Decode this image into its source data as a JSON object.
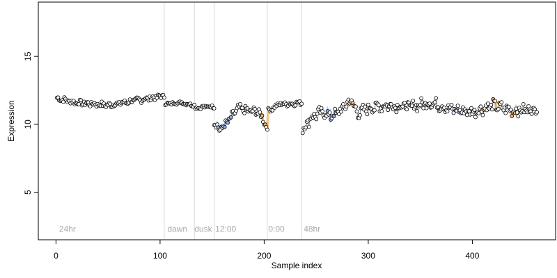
{
  "chart_data": {
    "type": "scatter",
    "xlabel": "Sample index",
    "ylabel": "Expression",
    "xlim": [
      -17,
      480
    ],
    "ylim": [
      1.5,
      19
    ],
    "x_ticks": [
      0,
      100,
      200,
      300,
      400
    ],
    "y_ticks": [
      5,
      10,
      15
    ],
    "grid": false,
    "colors": {
      "point_fill": "#ffffff",
      "point_stroke": "#000000",
      "line": "#9a9a9a",
      "blue_band": "#6f8fd8",
      "orange_band": "#e8a040",
      "vline": "#d9d9d9",
      "region_label": "#a9a9a9"
    },
    "vertical_lines": [
      104,
      133,
      152,
      203,
      236
    ],
    "region_labels": [
      {
        "text": "24hr",
        "x": 3
      },
      {
        "text": "dawn",
        "x": 107
      },
      {
        "text": "dusk",
        "x": 133
      },
      {
        "text": "12:00",
        "x": 153
      },
      {
        "text": "0:00",
        "x": 204
      },
      {
        "text": "48hr",
        "x": 238
      }
    ],
    "segments": [
      {
        "x_range": [
          1,
          104
        ],
        "anchors": [
          [
            1,
            11.9
          ],
          [
            20,
            11.6
          ],
          [
            50,
            11.4
          ],
          [
            80,
            11.8
          ],
          [
            104,
            12.1
          ]
        ],
        "amp": 0.18
      },
      {
        "x_range": [
          105,
          133
        ],
        "anchors": [
          [
            105,
            11.5
          ],
          [
            120,
            11.6
          ],
          [
            133,
            11.4
          ]
        ],
        "amp": 0.1
      },
      {
        "x_range": [
          134,
          152
        ],
        "anchors": [
          [
            134,
            11.2
          ],
          [
            145,
            11.3
          ],
          [
            152,
            11.3
          ]
        ],
        "amp": 0.1
      },
      {
        "x_range": [
          152,
          203
        ],
        "anchors": [
          [
            152,
            10.2
          ],
          [
            157,
            9.6
          ],
          [
            162,
            9.9
          ],
          [
            168,
            10.5
          ],
          [
            175,
            11.2
          ],
          [
            185,
            11.0
          ],
          [
            195,
            10.9
          ],
          [
            200,
            10.2
          ],
          [
            203,
            9.8
          ]
        ],
        "amp": 0.25
      },
      {
        "x_range": [
          204,
          236
        ],
        "anchors": [
          [
            204,
            11.0
          ],
          [
            215,
            11.5
          ],
          [
            225,
            11.5
          ],
          [
            236,
            11.6
          ]
        ],
        "amp": 0.15
      },
      {
        "x_range": [
          237,
          462
        ],
        "anchors": [
          [
            237,
            9.6
          ],
          [
            245,
            10.5
          ],
          [
            255,
            10.9
          ],
          [
            265,
            10.6
          ],
          [
            275,
            11.1
          ],
          [
            283,
            11.8
          ],
          [
            290,
            10.8
          ],
          [
            300,
            11.2
          ],
          [
            320,
            11.4
          ],
          [
            340,
            11.3
          ],
          [
            360,
            11.6
          ],
          [
            380,
            11.1
          ],
          [
            400,
            10.9
          ],
          [
            420,
            11.4
          ],
          [
            440,
            11.0
          ],
          [
            462,
            11.1
          ]
        ],
        "amp": 0.35
      }
    ],
    "blue_bands": [
      [
        154,
        168
      ],
      [
        260,
        268
      ],
      [
        383,
        387
      ]
    ],
    "orange_bands": [
      [
        197,
        204
      ],
      [
        281,
        287
      ],
      [
        409,
        412
      ],
      [
        420,
        428
      ],
      [
        436,
        443
      ]
    ]
  }
}
